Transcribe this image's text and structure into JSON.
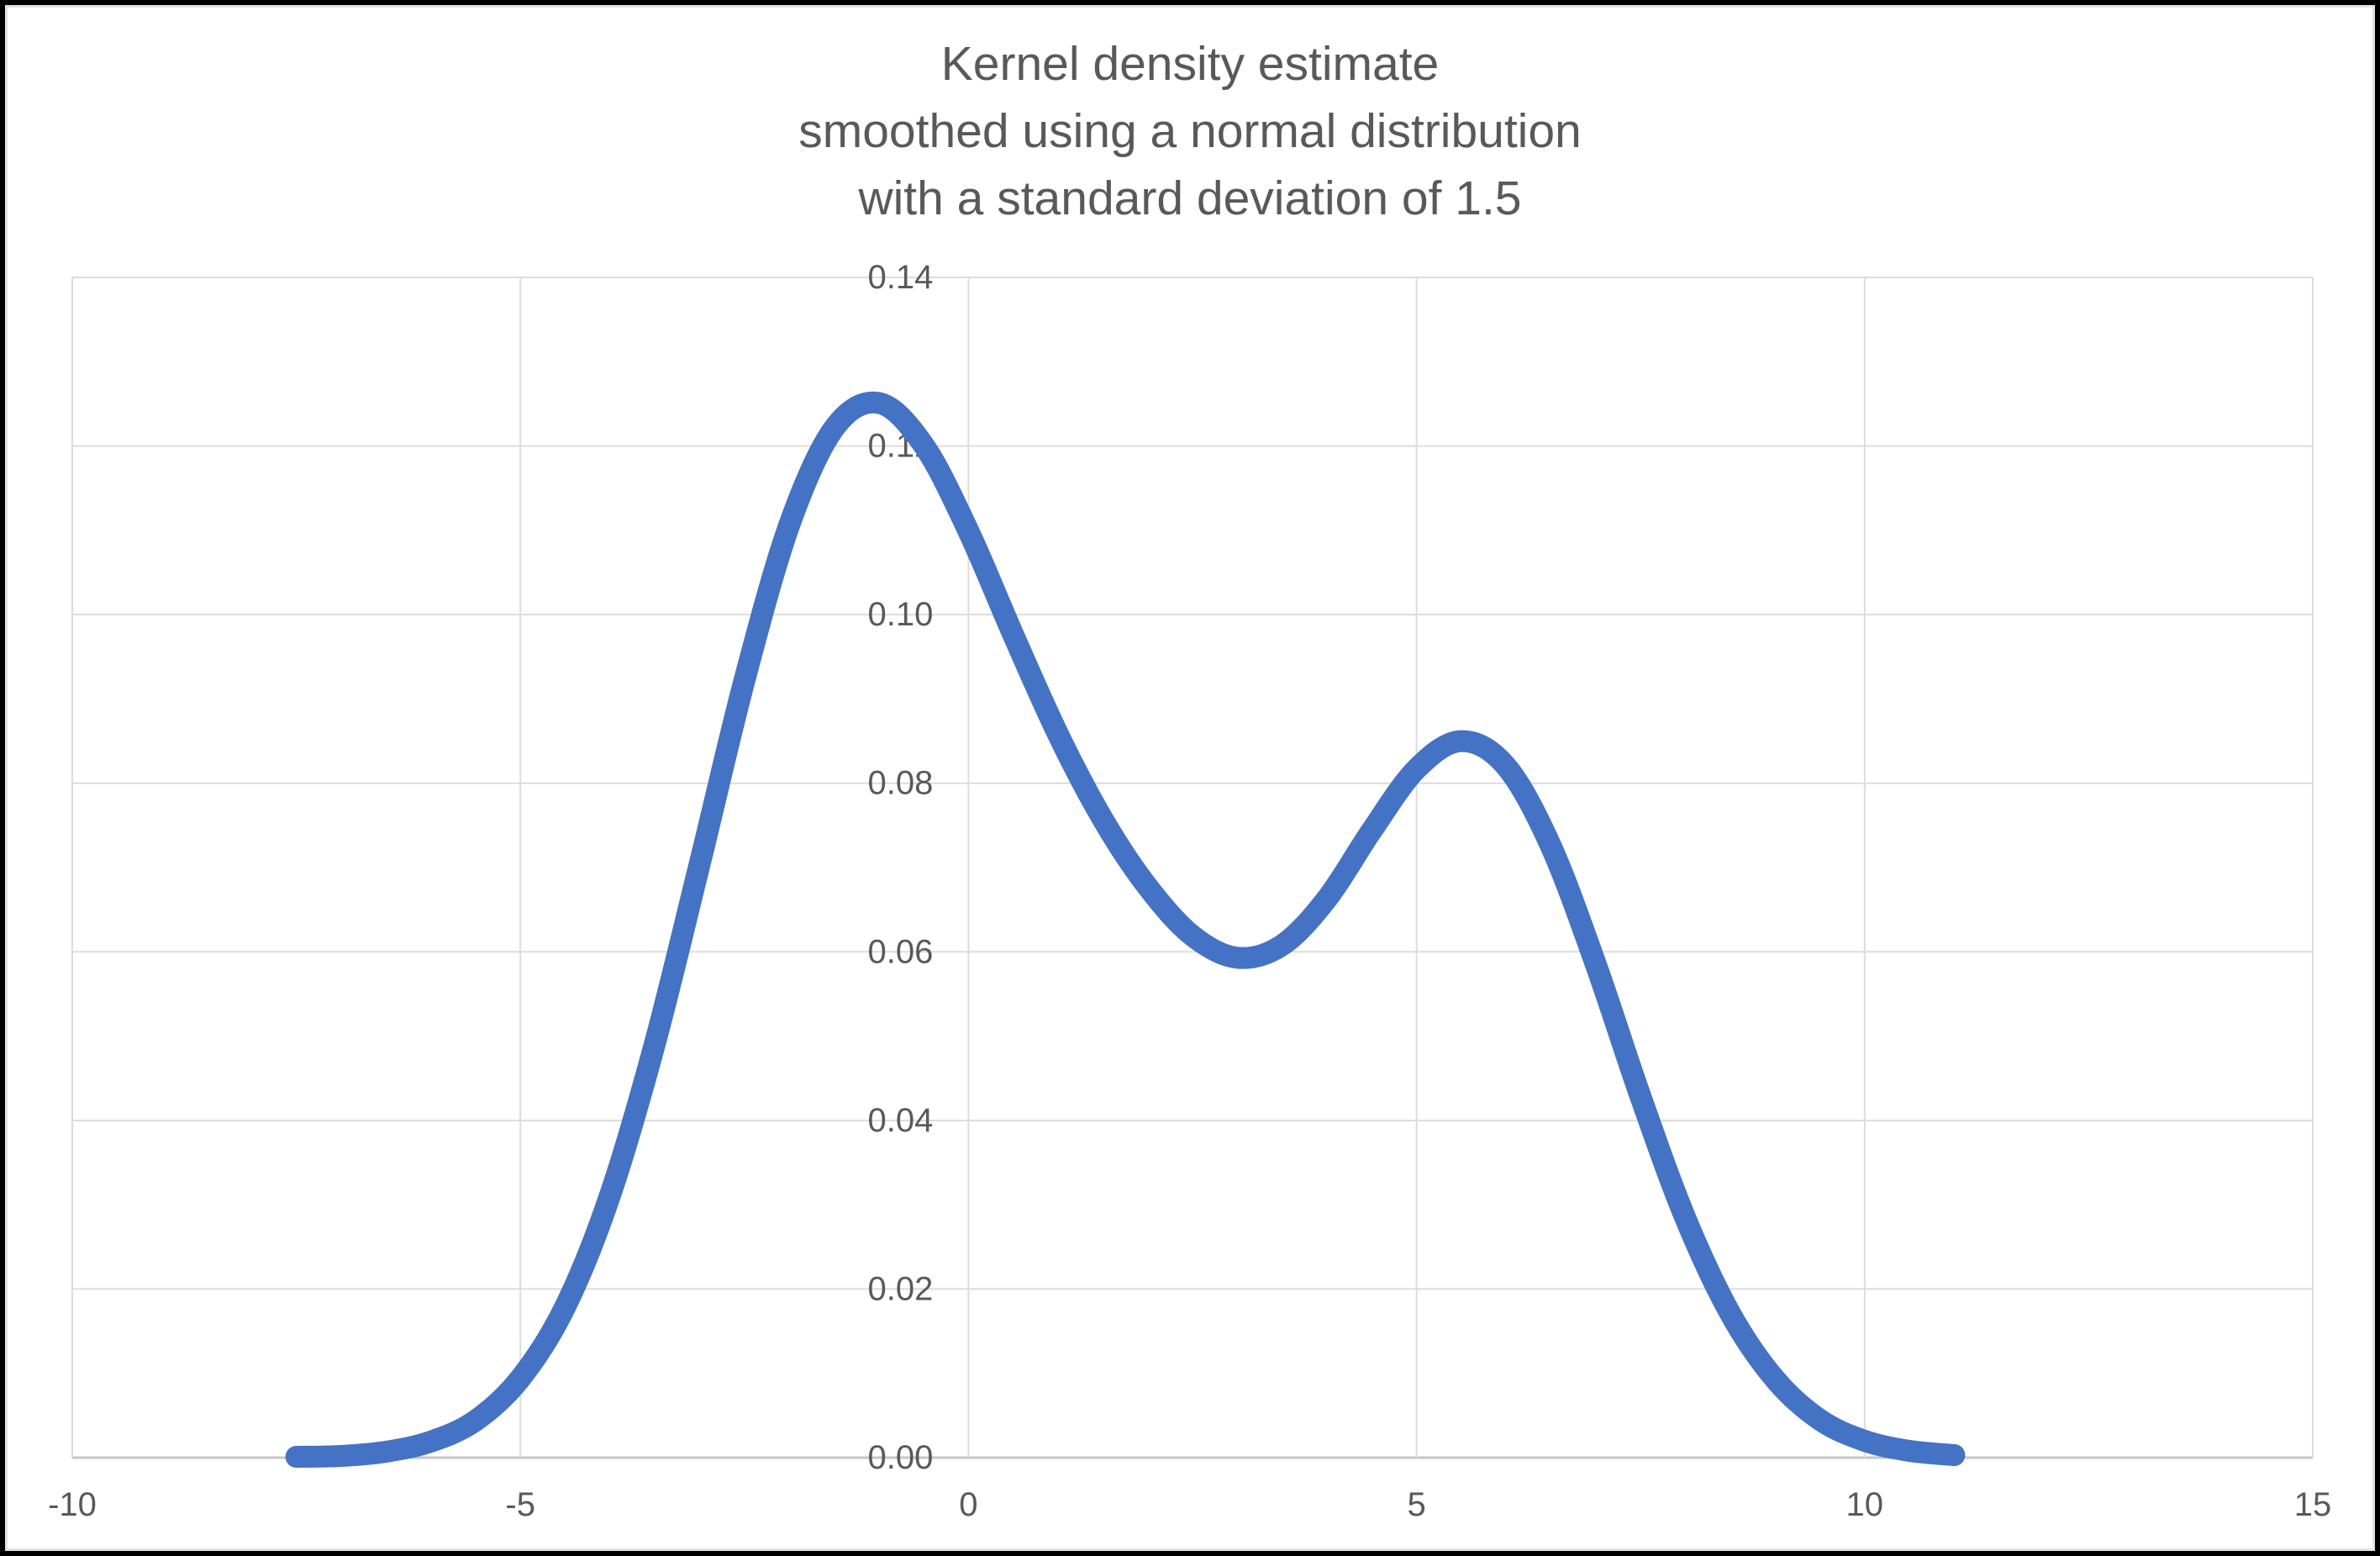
{
  "colors": {
    "series": "#4472C4",
    "gridline": "#DCDCDC",
    "axis_line": "#C6C6C6",
    "text": "#595959",
    "background": "#FFFFFF",
    "frame_border": "#000000"
  },
  "chart_data": {
    "type": "line",
    "title": "Kernel density estimate smoothed using a normal distribution with a standard deviation of 1.5",
    "title_lines": [
      "Kernel density estimate",
      "smoothed using a normal distribution",
      "with a standard deviation of 1.5"
    ],
    "xlabel": "",
    "ylabel": "",
    "xlim": [
      -10,
      15
    ],
    "ylim": [
      0,
      0.14
    ],
    "x_ticks": [
      -10,
      -5,
      0,
      5,
      10,
      15
    ],
    "x_tick_labels": [
      "-10",
      "-5",
      "0",
      "5",
      "10",
      "15"
    ],
    "y_ticks": [
      0,
      0.02,
      0.04,
      0.06,
      0.08,
      0.1,
      0.12,
      0.14
    ],
    "y_tick_labels": [
      "0.00",
      "0.02",
      "0.04",
      "0.06",
      "0.08",
      "0.10",
      "0.12",
      "0.14"
    ],
    "grid": true,
    "legend_position": "none",
    "series": [
      {
        "name": "Kernel density estimate",
        "color": "#4472C4",
        "x": [
          -7.5,
          -7,
          -6.5,
          -6,
          -5.5,
          -5,
          -4.5,
          -4,
          -3.5,
          -3,
          -2.5,
          -2,
          -1.5,
          -1,
          -0.5,
          0,
          0.5,
          1,
          1.5,
          2,
          2.5,
          3,
          3.5,
          4,
          4.5,
          5,
          5.5,
          6,
          6.5,
          7,
          7.5,
          8,
          8.5,
          9,
          9.5,
          10,
          10.5,
          11
        ],
        "y": [
          0.0001,
          0.0002,
          0.0007,
          0.0019,
          0.0044,
          0.0094,
          0.0179,
          0.0311,
          0.0491,
          0.0704,
          0.0922,
          0.1106,
          0.1221,
          0.1251,
          0.1201,
          0.1099,
          0.0976,
          0.0858,
          0.0757,
          0.0677,
          0.0619,
          0.0593,
          0.0608,
          0.0663,
          0.0744,
          0.0817,
          0.085,
          0.082,
          0.0725,
          0.0585,
          0.0428,
          0.0284,
          0.0171,
          0.0093,
          0.0045,
          0.002,
          0.0008,
          0.0003
        ]
      }
    ]
  }
}
